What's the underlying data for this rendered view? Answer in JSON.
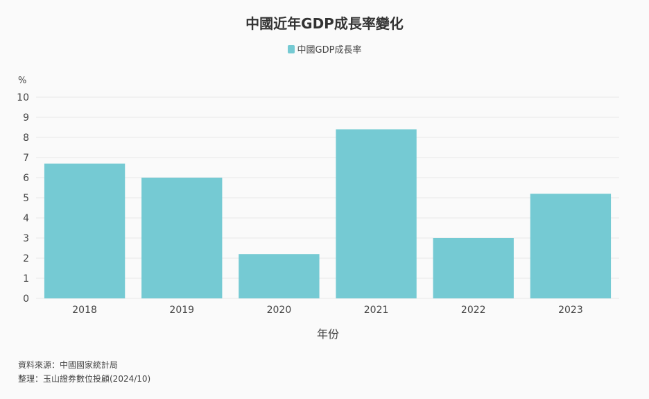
{
  "chart_data": {
    "type": "bar",
    "title": "中國近年GDP成長率變化",
    "legend": [
      "中國GDP成長率"
    ],
    "legend_position": "top-center",
    "series": [
      {
        "name": "中國GDP成長率",
        "values": [
          6.7,
          6.0,
          2.2,
          8.4,
          3.0,
          5.2
        ]
      }
    ],
    "categories": [
      "2018",
      "2019",
      "2020",
      "2021",
      "2022",
      "2023"
    ],
    "xlabel": "年份",
    "ylabel": "%",
    "ylim": [
      0,
      10
    ],
    "yticks": [
      "0",
      "1",
      "2",
      "3",
      "4",
      "5",
      "6",
      "7",
      "8",
      "9",
      "10"
    ],
    "grid": true
  },
  "colors": {
    "bar": "#75cad3",
    "grid": "#e8e8e8",
    "axis_text": "#444444"
  },
  "footer": {
    "source": "資料來源：中國國家統計局",
    "compiled": "整理：玉山證券數位投顧(2024/10)"
  }
}
